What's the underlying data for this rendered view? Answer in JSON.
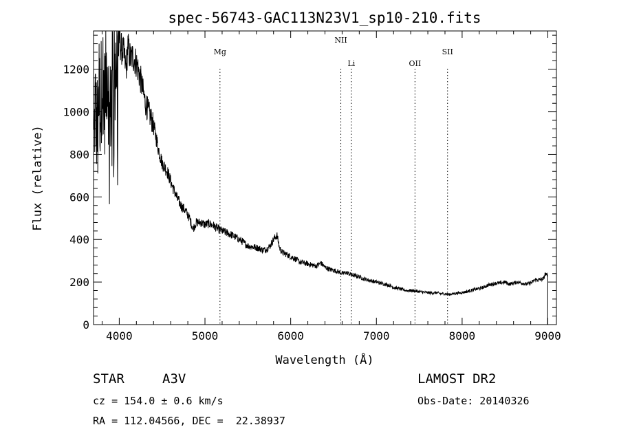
{
  "chart_data": {
    "type": "line",
    "title": "spec-56743-GAC113N23V1_sp10-210.fits",
    "xlabel": "Wavelength (Å)",
    "ylabel": "Flux (relative)",
    "xlim": [
      3700,
      9100
    ],
    "ylim": [
      0,
      1380
    ],
    "xticks": [
      4000,
      5000,
      6000,
      7000,
      8000,
      9000
    ],
    "yticks": [
      0,
      200,
      400,
      600,
      800,
      1000,
      1200
    ],
    "grid": false,
    "lines": [
      {
        "label": "Mg",
        "wavelength": 5175
      },
      {
        "label": "NII",
        "wavelength": 6585
      },
      {
        "label": "Li",
        "wavelength": 6708
      },
      {
        "label": "OII",
        "wavelength": 7450
      },
      {
        "label": "SII",
        "wavelength": 7830
      }
    ],
    "spectrum": {
      "x": [
        3705,
        3720,
        3740,
        3760,
        3780,
        3800,
        3830,
        3860,
        3890,
        3920,
        3950,
        3980,
        4000,
        4020,
        4050,
        4080,
        4100,
        4130,
        4160,
        4200,
        4250,
        4300,
        4340,
        4380,
        4420,
        4460,
        4500,
        4560,
        4620,
        4680,
        4720,
        4780,
        4820,
        4860,
        4900,
        4950,
        5000,
        5050,
        5100,
        5150,
        5200,
        5260,
        5320,
        5380,
        5440,
        5500,
        5560,
        5620,
        5680,
        5720,
        5760,
        5800,
        5840,
        5870,
        5900,
        5950,
        6000,
        6050,
        6100,
        6150,
        6200,
        6250,
        6300,
        6350,
        6400,
        6450,
        6500,
        6550,
        6600,
        6650,
        6700,
        6750,
        6800,
        6850,
        6900,
        6950,
        7000,
        7050,
        7100,
        7150,
        7200,
        7250,
        7300,
        7350,
        7400,
        7450,
        7500,
        7550,
        7600,
        7650,
        7700,
        7750,
        7800,
        7850,
        7900,
        7950,
        8000,
        8050,
        8100,
        8150,
        8200,
        8250,
        8300,
        8350,
        8400,
        8450,
        8500,
        8550,
        8600,
        8650,
        8700,
        8750,
        8800,
        8850,
        8900,
        8950,
        8970,
        8985,
        9000
      ],
      "y": [
        850,
        1050,
        900,
        1150,
        1000,
        1200,
        1050,
        1250,
        950,
        1180,
        1300,
        1220,
        1350,
        1300,
        1280,
        1200,
        1310,
        1250,
        1260,
        1230,
        1150,
        1050,
        1000,
        960,
        900,
        820,
        760,
        720,
        650,
        590,
        560,
        530,
        500,
        450,
        480,
        480,
        470,
        475,
        465,
        450,
        440,
        430,
        420,
        405,
        390,
        370,
        365,
        360,
        350,
        355,
        370,
        400,
        420,
        360,
        340,
        330,
        320,
        310,
        295,
        290,
        285,
        280,
        275,
        290,
        270,
        260,
        255,
        250,
        240,
        245,
        235,
        230,
        225,
        215,
        210,
        205,
        200,
        195,
        190,
        185,
        175,
        170,
        165,
        160,
        160,
        158,
        155,
        152,
        150,
        148,
        150,
        145,
        145,
        142,
        145,
        148,
        150,
        155,
        160,
        165,
        170,
        175,
        185,
        190,
        195,
        195,
        200,
        190,
        195,
        200,
        195,
        190,
        195,
        210,
        210,
        215,
        240,
        230,
        240
      ]
    }
  },
  "info": {
    "object_type": "STAR",
    "object_class": "A3V",
    "survey": "LAMOST DR2",
    "redshift": "cz = 154.0 ± 0.6 km/s",
    "obs_date": "Obs-Date: 20140326",
    "coords": "RA = 112.04566, DEC =  22.38937"
  }
}
